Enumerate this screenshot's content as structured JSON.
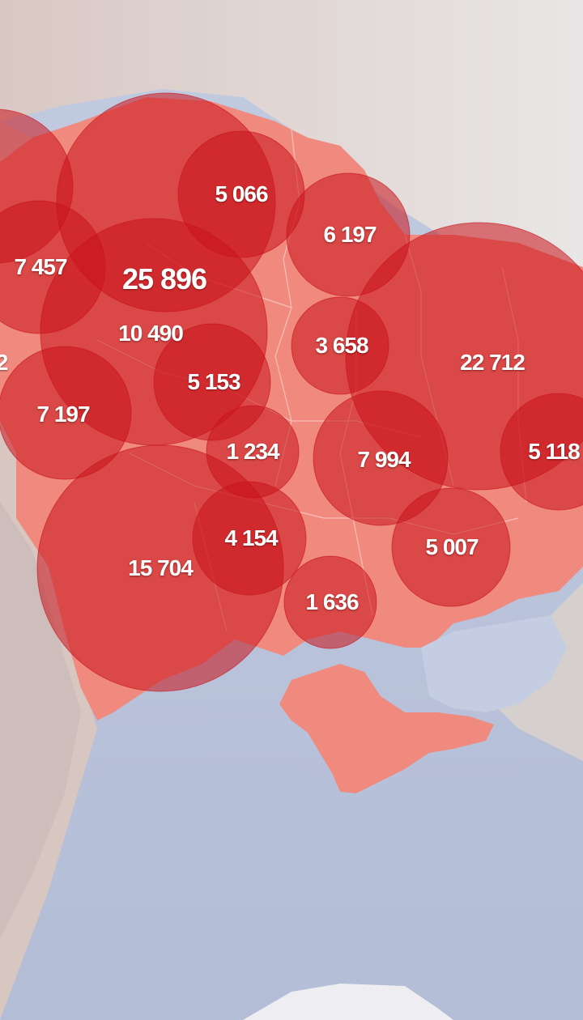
{
  "map": {
    "region": "Ukraine",
    "bubble_color": "#c8121a",
    "land_color": "#f08a80",
    "sea_color": "#bcc6dc",
    "neighbor_color": "#d9d4d0",
    "regions": [
      {
        "id": "partial-west-1",
        "value": "2"
      },
      {
        "id": "west-a",
        "value": "7 457"
      },
      {
        "id": "capital-region",
        "value": "25 896"
      },
      {
        "id": "central-north",
        "value": "10 490"
      },
      {
        "id": "north-a",
        "value": "5 066"
      },
      {
        "id": "north-b",
        "value": "6 197"
      },
      {
        "id": "central-a",
        "value": "3 658"
      },
      {
        "id": "east-a",
        "value": "22 712"
      },
      {
        "id": "west-b",
        "value": "7 197"
      },
      {
        "id": "central-b",
        "value": "5 153"
      },
      {
        "id": "central-c",
        "value": "1 234"
      },
      {
        "id": "central-east",
        "value": "7 994"
      },
      {
        "id": "east-edge",
        "value": "5 118"
      },
      {
        "id": "south-a",
        "value": "4 154"
      },
      {
        "id": "south-west",
        "value": "15 704"
      },
      {
        "id": "south-east",
        "value": "5 007"
      },
      {
        "id": "south-b",
        "value": "1 636"
      }
    ]
  }
}
